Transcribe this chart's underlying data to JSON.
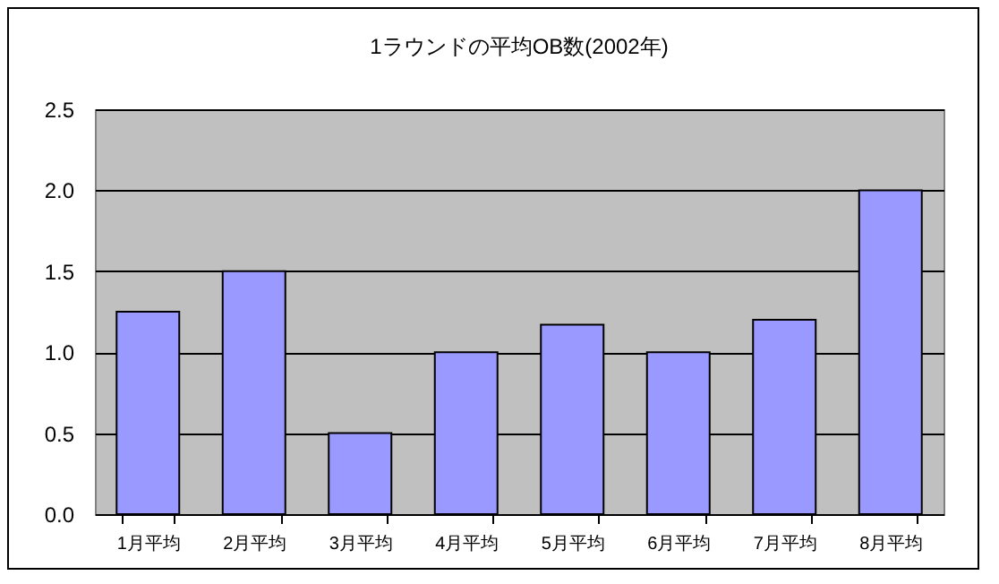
{
  "chart_data": {
    "type": "bar",
    "title": "1ラウンドの平均OB数(2002年)",
    "categories": [
      "1月平均",
      "2月平均",
      "3月平均",
      "4月平均",
      "5月平均",
      "6月平均",
      "7月平均",
      "8月平均"
    ],
    "values": [
      1.25,
      1.5,
      0.5,
      1.0,
      1.17,
      1.0,
      1.2,
      2.0
    ],
    "color": "#9999ff",
    "ylim": [
      0,
      2.5
    ],
    "yticks": [
      {
        "value": 0,
        "label": "0.0"
      },
      0.5,
      {
        "value": 1,
        "label": "1.0"
      },
      1.5,
      {
        "value": 2,
        "label": "2.0"
      },
      2.5
    ],
    "grid": "y"
  }
}
